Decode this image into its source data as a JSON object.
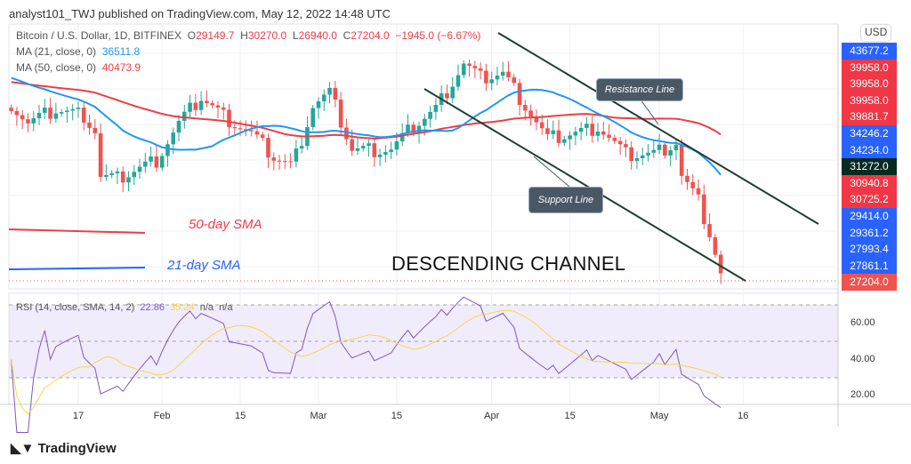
{
  "header": "analyst101_TWJ published on TradingView.com, May 12, 2022 14:48 UTC",
  "legend": {
    "symbol": "Bitcoin / U.S. Dollar, 1D, BITFINEX",
    "o_label": "O",
    "o": "29149.7",
    "h_label": "H",
    "h": "30270.0",
    "l_label": "L",
    "l": "26940.0",
    "c_label": "C",
    "c": "27204.0",
    "change": "−1945.0 (−6.67%)",
    "ma21_label": "MA (21, close, 0)",
    "ma21": "36511.8",
    "ma50_label": "MA (50, close, 0)",
    "ma50": "40473.9",
    "rsi_label": "RSI (14, close, SMA, 14, 2)",
    "rsi": "22.86",
    "rsi_sma": "35.24",
    "na1": "n/a",
    "na2": "n/a"
  },
  "currency": "USD",
  "price_labels": [
    {
      "v": "43677.2",
      "c": "#2962ff"
    },
    {
      "v": "39958.0",
      "c": "#f23645"
    },
    {
      "v": "39958.0",
      "c": "#f23645"
    },
    {
      "v": "39958.0",
      "c": "#f23645"
    },
    {
      "v": "39881.7",
      "c": "#f23645"
    },
    {
      "v": "34246.2",
      "c": "#2962ff"
    },
    {
      "v": "34234.0",
      "c": "#2962ff"
    },
    {
      "v": "31272.0",
      "c": "#062a22"
    },
    {
      "v": "30940.8",
      "c": "#f23645"
    },
    {
      "v": "30725.2",
      "c": "#f23645"
    },
    {
      "v": "29414.0",
      "c": "#2962ff"
    },
    {
      "v": "29361.2",
      "c": "#2962ff"
    },
    {
      "v": "27993.4",
      "c": "#2962ff"
    },
    {
      "v": "27861.1",
      "c": "#2962ff"
    },
    {
      "v": "27204.0",
      "c": "#ef5350"
    }
  ],
  "rsi_axis": [
    "60.00",
    "40.00",
    "20.00"
  ],
  "time_axis": [
    {
      "t": "17",
      "d": 12
    },
    {
      "t": "Feb",
      "d": 27
    },
    {
      "t": "15",
      "d": 41
    },
    {
      "t": "Mar",
      "d": 55
    },
    {
      "t": "15",
      "d": 69
    },
    {
      "t": "Apr",
      "d": 86
    },
    {
      "t": "15",
      "d": 100
    },
    {
      "t": "May",
      "d": 116
    },
    {
      "t": "16",
      "d": 131
    }
  ],
  "annotations": {
    "resistance": "Resistance Line",
    "support": "Support Line",
    "sma50": "50-day SMA",
    "sma21": "21-day SMA",
    "channel": "DESCENDING CHANNEL"
  },
  "logo": "TradingView",
  "chart_data": {
    "type": "candlestick",
    "start": "Jan 5 2022",
    "interval": "1D",
    "close_keypoints": [
      [
        0,
        43400
      ],
      [
        3,
        41500
      ],
      [
        8,
        42800
      ],
      [
        13,
        42300
      ],
      [
        15,
        40800
      ],
      [
        16,
        36400
      ],
      [
        19,
        36200
      ],
      [
        22,
        37000
      ],
      [
        26,
        38000
      ],
      [
        30,
        41500
      ],
      [
        34,
        44000
      ],
      [
        38,
        42200
      ],
      [
        43,
        40500
      ],
      [
        47,
        38300
      ],
      [
        50,
        37500
      ],
      [
        51,
        38500
      ],
      [
        54,
        43200
      ],
      [
        57,
        44400
      ],
      [
        61,
        39000
      ],
      [
        68,
        39000
      ],
      [
        72,
        41200
      ],
      [
        76,
        42900
      ],
      [
        81,
        47200
      ],
      [
        84,
        45800
      ],
      [
        88,
        46300
      ],
      [
        92,
        43200
      ],
      [
        96,
        40000
      ],
      [
        102,
        40700
      ],
      [
        105,
        41200
      ],
      [
        110,
        38500
      ],
      [
        115,
        38600
      ],
      [
        119,
        39700
      ],
      [
        120,
        36500
      ],
      [
        123,
        34000
      ],
      [
        125,
        31000
      ],
      [
        126,
        29100
      ],
      [
        127,
        27204
      ]
    ],
    "colors": {
      "up": "#26a69a",
      "down": "#ef5350",
      "ma21": "#2196f3",
      "ma50": "#ef3d47",
      "rsi": "#7e57c2",
      "rsi_sma": "#f0d94a"
    }
  }
}
